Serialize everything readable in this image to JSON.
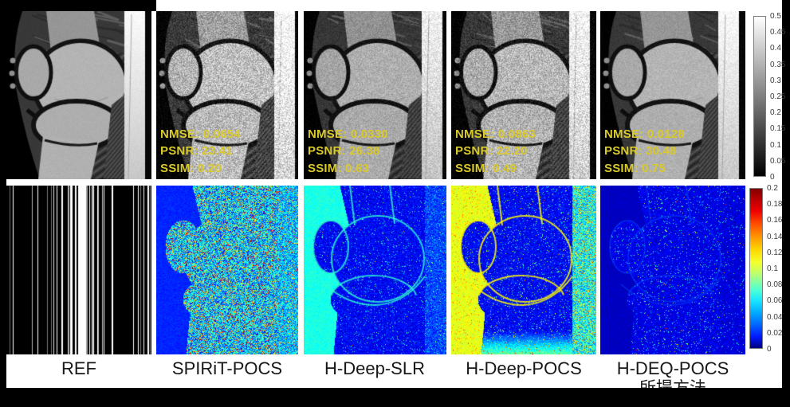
{
  "columns": [
    {
      "label": "REF",
      "metrics": []
    },
    {
      "label": "SPIRiT-POCS",
      "metrics": [
        "NMSE: 0.0654",
        "PSNR: 23.41",
        "SSIM: 0.20"
      ]
    },
    {
      "label": "H-Deep-SLR",
      "metrics": [
        "NMSE: 0.0330",
        "PSNR: 26.38",
        "SSIM: 0.63"
      ]
    },
    {
      "label": "H-Deep-POCS",
      "metrics": [
        "NMSE: 0.0863",
        "PSNR: 22.20",
        "SSIM: 0.49"
      ]
    },
    {
      "label": "H-DEQ-POCS",
      "metrics": [
        "NMSE: 0.0128",
        "PSNR: 30.48",
        "SSIM: 0.75"
      ]
    }
  ],
  "annotation": "所提方法",
  "rows": {
    "top": "reconstructed-knee-mri",
    "bottom": "sampling-mask-and-error-maps"
  },
  "colorbars": {
    "grayscale": {
      "ticks": [
        "0.5",
        "0.45",
        "0.4",
        "0.35",
        "0.3",
        "0.25",
        "0.2",
        "0.15",
        "0.1",
        "0.05",
        "0"
      ]
    },
    "jet": {
      "ticks": [
        "0.2",
        "0.18",
        "0.16",
        "0.14",
        "0.12",
        "0.1",
        "0.08",
        "0.06",
        "0.04",
        "0.02",
        "0"
      ]
    }
  },
  "colors": {
    "metrics_text": "#d9c92a",
    "label_text": "#181818",
    "page_background": "#000000",
    "sheet_background": "#ffffff"
  }
}
